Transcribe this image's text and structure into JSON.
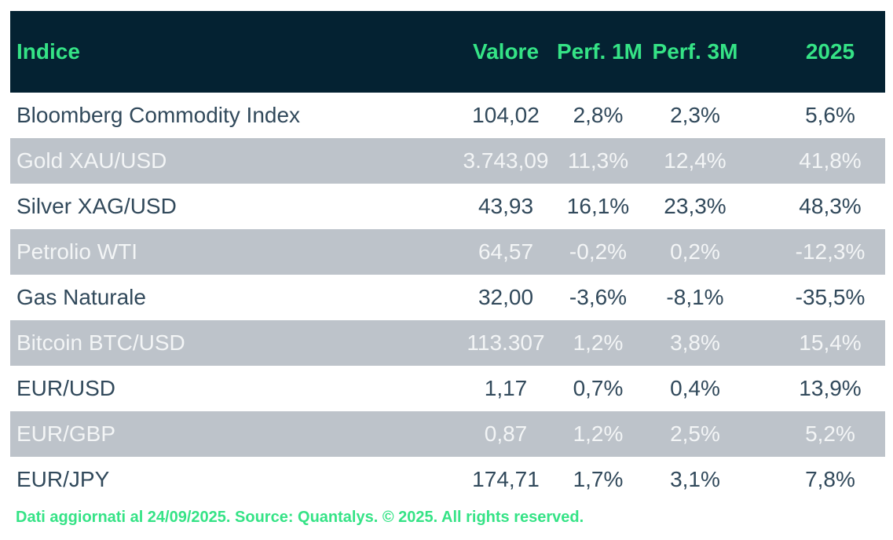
{
  "chart_data": {
    "type": "table",
    "columns": [
      "Indice",
      "Valore",
      "Perf. 1M",
      "Perf. 3M",
      "2025"
    ],
    "rows": [
      [
        "Bloomberg Commodity Index",
        "104,02",
        "2,8%",
        "2,3%",
        "5,6%"
      ],
      [
        "Gold XAU/USD",
        "3.743,09",
        "11,3%",
        "12,4%",
        "41,8%"
      ],
      [
        "Silver XAG/USD",
        "43,93",
        "16,1%",
        "23,3%",
        "48,3%"
      ],
      [
        "Petrolio WTI",
        "64,57",
        "-0,2%",
        "0,2%",
        "-12,3%"
      ],
      [
        "Gas Naturale",
        "32,00",
        "-3,6%",
        "-8,1%",
        "-35,5%"
      ],
      [
        "Bitcoin BTC/USD",
        "113.307",
        "1,2%",
        "3,8%",
        "15,4%"
      ],
      [
        "EUR/USD",
        "1,17",
        "0,7%",
        "0,4%",
        "13,9%"
      ],
      [
        "EUR/GBP",
        "0,87",
        "1,2%",
        "2,5%",
        "5,2%"
      ],
      [
        "EUR/JPY",
        "174,71",
        "1,7%",
        "3,1%",
        "7,8%"
      ]
    ],
    "footnote": "Dati aggiornati al 24/09/2025. Source: Quantalys. © 2025. All rights reserved.",
    "layout": {
      "row_striping": "even rows shaded",
      "numeric_alignment": "center",
      "label_alignment": "left"
    }
  },
  "colors": {
    "header_bg": "#042232",
    "accent_green": "#35e386",
    "row_alt_bg": "#bdc3ca",
    "row_text": "#31495b",
    "row_alt_text": "#f3f5f6",
    "page_bg": "#ffffff"
  }
}
